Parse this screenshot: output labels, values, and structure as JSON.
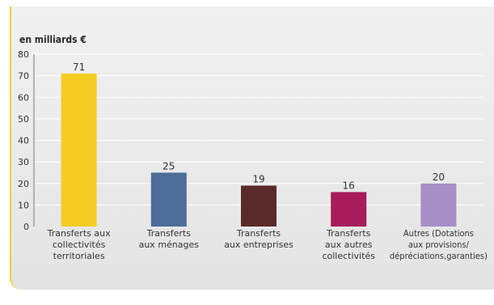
{
  "chart_data": {
    "type": "bar",
    "ylabel": "en milliards €",
    "ylim": [
      0,
      80
    ],
    "yticks": [
      0,
      10,
      20,
      30,
      40,
      50,
      60,
      70,
      80
    ],
    "grid": true,
    "categories": [
      [
        "Transferts aux",
        "collectivités",
        "territoriales"
      ],
      [
        "Transferts",
        "aux ménages"
      ],
      [
        "Transferts",
        "aux entreprises"
      ],
      [
        "Transferts",
        "aux autres",
        "collectivités"
      ],
      [
        "Autres (Dotations",
        "aux provisions/",
        "dépréciations,garanties)"
      ]
    ],
    "values": [
      71,
      25,
      19,
      16,
      20
    ],
    "colors": [
      "#f5cc22",
      "#4b6d98",
      "#5a2a2a",
      "#a81c5a",
      "#a58fc6"
    ]
  }
}
